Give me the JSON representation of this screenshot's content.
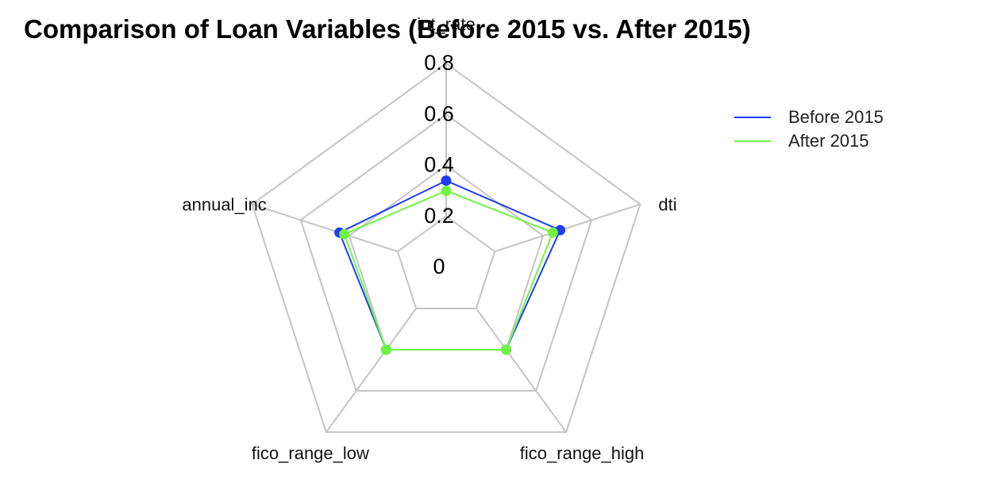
{
  "chart_data": {
    "type": "radar",
    "title": "Comparison of Loan Variables (Before 2015 vs. After 2015)",
    "axes": [
      "int_rate",
      "dti",
      "fico_range_high",
      "fico_range_low",
      "annual_inc"
    ],
    "radial_ticks": [
      "0",
      "0.2",
      "0.4",
      "0.6",
      "0.8"
    ],
    "rlim": [
      0,
      0.8
    ],
    "grid": true,
    "legend_position": "top-right",
    "series": [
      {
        "name": "Before 2015",
        "color": "#1f3df5",
        "values": [
          0.34,
          0.47,
          0.4,
          0.4,
          0.44
        ]
      },
      {
        "name": "After 2015",
        "color": "#6ef542",
        "values": [
          0.3,
          0.44,
          0.4,
          0.4,
          0.42
        ]
      }
    ]
  }
}
